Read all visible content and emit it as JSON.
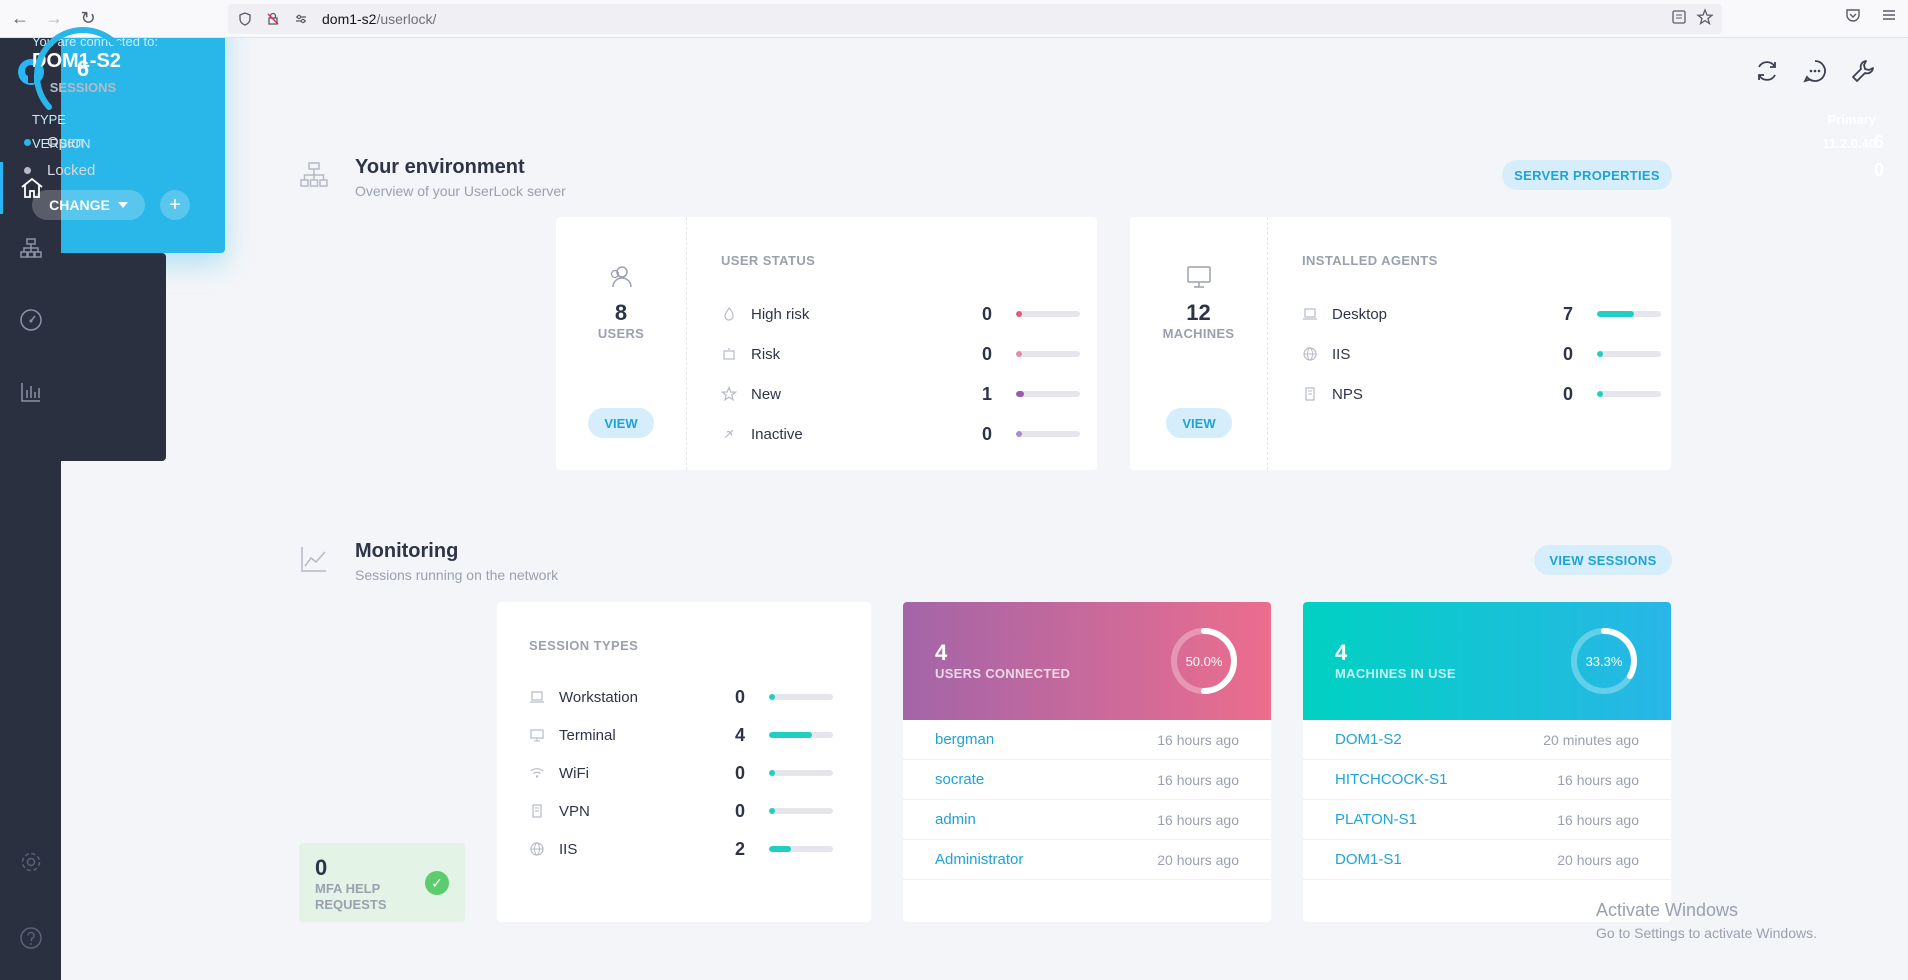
{
  "browser": {
    "url_host": "dom1-s2",
    "url_path": "/userlock/"
  },
  "environment": {
    "title": "Your environment",
    "subtitle": "Overview of your UserLock server",
    "button": "SERVER PROPERTIES"
  },
  "server": {
    "connected_label": "You are connected to:",
    "name": "DOM1-S2",
    "type_label": "TYPE",
    "type_value": "Primary",
    "version_label": "VERSION",
    "version_value": "11.2.0.40",
    "change_label": "CHANGE",
    "add_label": "+"
  },
  "users": {
    "count": "8",
    "label": "USERS",
    "view": "VIEW",
    "list_title": "USER STATUS",
    "items": [
      {
        "name": "High risk",
        "value": "0",
        "fill": 0.1,
        "color": "#e25b73"
      },
      {
        "name": "Risk",
        "value": "0",
        "fill": 0.1,
        "color": "#e88aa0"
      },
      {
        "name": "New",
        "value": "1",
        "fill": 0.13,
        "color": "#9b59b6"
      },
      {
        "name": "Inactive",
        "value": "0",
        "fill": 0.1,
        "color": "#a88dc8"
      }
    ]
  },
  "machines": {
    "count": "12",
    "label": "MACHINES",
    "view": "VIEW",
    "list_title": "INSTALLED AGENTS",
    "items": [
      {
        "name": "Desktop",
        "value": "7",
        "fill": 0.58,
        "color": "#1fcfc1"
      },
      {
        "name": "IIS",
        "value": "0",
        "fill": 0.1,
        "color": "#1fcfc1"
      },
      {
        "name": "NPS",
        "value": "0",
        "fill": 0.1,
        "color": "#1fcfc1"
      }
    ]
  },
  "monitoring": {
    "title": "Monitoring",
    "subtitle": "Sessions running on the network",
    "button": "VIEW SESSIONS"
  },
  "sessions": {
    "count": "6",
    "label": "SESSIONS",
    "open_label": "Open",
    "open_value": "6",
    "locked_label": "Locked",
    "locked_value": "0"
  },
  "mfa": {
    "count": "0",
    "label": "MFA HELP REQUESTS"
  },
  "session_types": {
    "title": "SESSION TYPES",
    "items": [
      {
        "name": "Workstation",
        "value": "0",
        "fill": 0.1
      },
      {
        "name": "Terminal",
        "value": "4",
        "fill": 0.67
      },
      {
        "name": "WiFi",
        "value": "0",
        "fill": 0.1
      },
      {
        "name": "VPN",
        "value": "0",
        "fill": 0.1
      },
      {
        "name": "IIS",
        "value": "2",
        "fill": 0.34
      }
    ]
  },
  "users_connected": {
    "count": "4",
    "label": "USERS CONNECTED",
    "percent": "50.0%",
    "fraction": 0.5,
    "rows": [
      {
        "name": "bergman",
        "time": "16 hours ago"
      },
      {
        "name": "socrate",
        "time": "16 hours ago"
      },
      {
        "name": "admin",
        "time": "16 hours ago"
      },
      {
        "name": "Administrator",
        "time": "20 hours ago"
      }
    ]
  },
  "machines_in_use": {
    "count": "4",
    "label": "MACHINES IN USE",
    "percent": "33.3%",
    "fraction": 0.333,
    "rows": [
      {
        "name": "DOM1-S2",
        "time": "20 minutes ago"
      },
      {
        "name": "HITCHCOCK-S1",
        "time": "16 hours ago"
      },
      {
        "name": "PLATON-S1",
        "time": "16 hours ago"
      },
      {
        "name": "DOM1-S1",
        "time": "20 hours ago"
      }
    ]
  },
  "watermark": {
    "line1": "Activate Windows",
    "line2": "Go to Settings to activate Windows."
  }
}
